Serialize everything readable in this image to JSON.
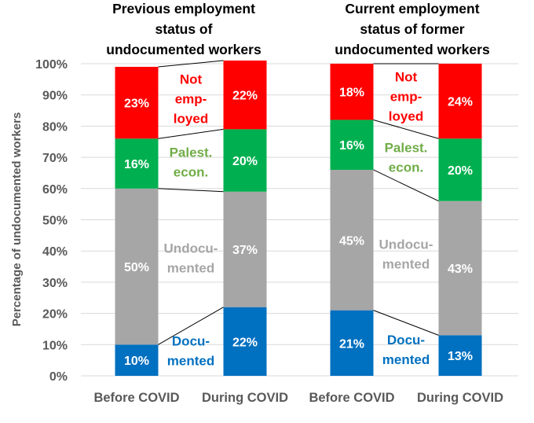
{
  "chart_data": {
    "type": "bar",
    "stacked": true,
    "ylabel": "Percentage of undocumented workers",
    "ylim": [
      0,
      100
    ],
    "yticks": [
      "0%",
      "10%",
      "20%",
      "30%",
      "40%",
      "50%",
      "60%",
      "70%",
      "80%",
      "90%",
      "100%"
    ],
    "grid": true,
    "categories": [
      "Before COVID",
      "During COVID"
    ],
    "segments": [
      {
        "name": "Docu-\nmented",
        "color": "#0070C0",
        "label_color": "#0070C0"
      },
      {
        "name": "Undocu-\nmented",
        "color": "#A6A6A6",
        "label_color": "#A6A6A6"
      },
      {
        "name": "Palest.\necon.",
        "color": "#00B050",
        "label_color": "#70AD47"
      },
      {
        "name": "Not\nemp-\nloyed",
        "color": "#FF0000",
        "label_color": "#FF0000"
      }
    ],
    "panels": [
      {
        "title": "Previous employment\nstatus of\nundocumented workers",
        "values": [
          [
            10,
            50,
            16,
            23
          ],
          [
            22,
            37,
            20,
            22
          ]
        ],
        "labels": [
          [
            "10%",
            "50%",
            "16%",
            "23%"
          ],
          [
            "22%",
            "37%",
            "20%",
            "22%"
          ]
        ]
      },
      {
        "title": "Current employment\nstatus of former\nundocumented workers",
        "values": [
          [
            21,
            45,
            16,
            18
          ],
          [
            13,
            43,
            20,
            24
          ]
        ],
        "labels": [
          [
            "21%",
            "45%",
            "16%",
            "18%"
          ],
          [
            "13%",
            "43%",
            "20%",
            "24%"
          ]
        ]
      }
    ]
  }
}
